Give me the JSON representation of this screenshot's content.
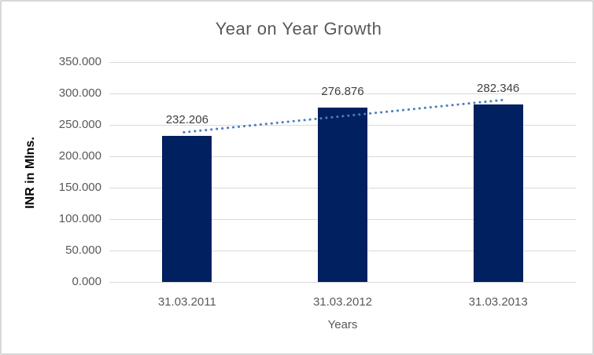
{
  "chart_data": {
    "type": "bar",
    "title": "Year on Year Growth",
    "xlabel": "Years",
    "ylabel": "INR in Mlns.",
    "categories": [
      "31.03.2011",
      "31.03.2012",
      "31.03.2013"
    ],
    "series": [
      {
        "name": "INR in Mlns.",
        "values": [
          232.206,
          276.876,
          282.346
        ],
        "data_labels": [
          "232.206",
          "276.876",
          "282.346"
        ]
      }
    ],
    "ylim": [
      0,
      350
    ],
    "ytick_step": 50,
    "ytick_labels": [
      "0.000",
      "50.000",
      "100.000",
      "150.000",
      "200.000",
      "250.000",
      "300.000",
      "350.000"
    ],
    "grid": true,
    "legend": "none",
    "trendline": {
      "type": "linear",
      "line_style": "dotted"
    },
    "colors": {
      "bar": "#012060",
      "trendline": "#4a7ebb",
      "gridline": "#d9d9d9",
      "title_text": "#595959",
      "axis_text": "#595959",
      "data_label_text": "#404040",
      "y_axis_title_text": "#000000",
      "background": "#ffffff",
      "border": "#d7d7d7"
    }
  }
}
